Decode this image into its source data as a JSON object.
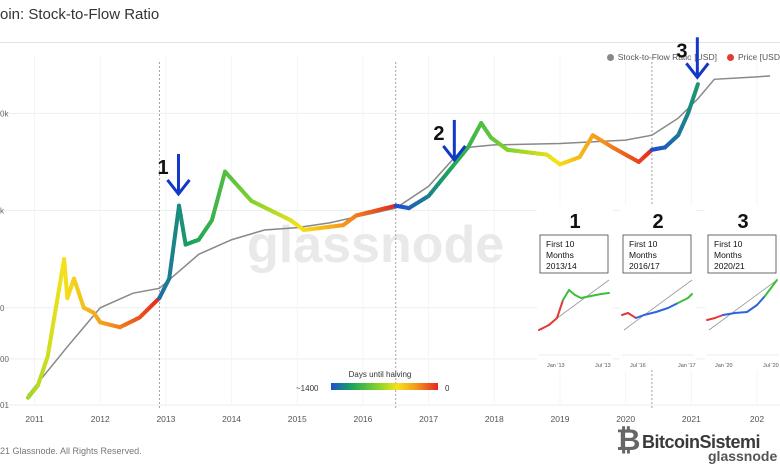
{
  "page_title": "oin: Stock-to-Flow Ratio",
  "legend": [
    {
      "label": "Stock-to-Flow Ratio [USD]",
      "color": "#888888"
    },
    {
      "label": "Price [USD",
      "color": "#e53935"
    }
  ],
  "footer": "21 Glassnode. All Rights Reserved.",
  "watermark": {
    "brand": "BitcoinSistemi",
    "sub": "glassnode",
    "chart_brand": "glassnode"
  },
  "colorbar": {
    "title": "Days until halving",
    "low_label": "~1400",
    "high_label": "0"
  },
  "annotations": [
    {
      "label": "1",
      "x": 2013.1
    },
    {
      "label": "2",
      "x": 2017.3
    },
    {
      "label": "3",
      "x": 2021.0
    }
  ],
  "insets": [
    {
      "number": "1",
      "box": [
        "First 10",
        "Months",
        "2013/14"
      ],
      "xticks": [
        "Jan '13",
        "Jul '13"
      ]
    },
    {
      "number": "2",
      "box": [
        "First 10",
        "Months",
        "2016/17"
      ],
      "xticks": [
        "Jul '16",
        "Jan '17"
      ]
    },
    {
      "number": "3",
      "box": [
        "First 10",
        "Months",
        "2020/21"
      ],
      "xticks": [
        "Jan '20",
        "Jul '20"
      ]
    }
  ],
  "chart_data": {
    "type": "line",
    "xlabel": "",
    "ylabel": "",
    "x_ticks": [
      "2011",
      "2012",
      "2013",
      "2014",
      "2015",
      "2016",
      "2017",
      "2018",
      "2019",
      "2020",
      "2021",
      "202"
    ],
    "y_tick_labels": [
      "0k",
      "k",
      "0",
      "00",
      "01"
    ],
    "grid": true,
    "legend_position": "top-right",
    "halving_dates": [
      2012.9,
      2016.5,
      2020.4
    ],
    "series": [
      {
        "name": "Stock-to-Flow Ratio [USD]",
        "color": "#888888",
        "points": [
          [
            2010.9,
            0.2
          ],
          [
            2011.5,
            1.2
          ],
          [
            2012.0,
            2.0
          ],
          [
            2012.5,
            2.3
          ],
          [
            2012.9,
            2.4
          ],
          [
            2013.5,
            3.1
          ],
          [
            2014.0,
            3.4
          ],
          [
            2014.5,
            3.6
          ],
          [
            2015.0,
            3.65
          ],
          [
            2015.5,
            3.75
          ],
          [
            2016.0,
            3.9
          ],
          [
            2016.5,
            4.05
          ],
          [
            2017.0,
            4.5
          ],
          [
            2017.4,
            5.1
          ],
          [
            2017.6,
            5.3
          ],
          [
            2018.0,
            5.35
          ],
          [
            2019.0,
            5.38
          ],
          [
            2020.0,
            5.45
          ],
          [
            2020.4,
            5.55
          ],
          [
            2020.8,
            5.9
          ],
          [
            2021.1,
            6.3
          ],
          [
            2021.35,
            6.7
          ],
          [
            2022.0,
            6.75
          ],
          [
            2022.2,
            6.77
          ]
        ]
      },
      {
        "name": "Price [USD",
        "points": [
          [
            2010.9,
            0.15
          ],
          [
            2011.05,
            0.4
          ],
          [
            2011.2,
            1.0
          ],
          [
            2011.3,
            1.8
          ],
          [
            2011.45,
            3.0
          ],
          [
            2011.5,
            2.2
          ],
          [
            2011.6,
            2.6
          ],
          [
            2011.75,
            2.0
          ],
          [
            2011.9,
            1.9
          ],
          [
            2012.0,
            1.7
          ],
          [
            2012.3,
            1.6
          ],
          [
            2012.6,
            1.8
          ],
          [
            2012.9,
            2.2
          ],
          [
            2013.05,
            2.6
          ],
          [
            2013.2,
            4.1
          ],
          [
            2013.3,
            3.3
          ],
          [
            2013.5,
            3.4
          ],
          [
            2013.7,
            3.8
          ],
          [
            2013.9,
            4.8
          ],
          [
            2014.1,
            4.5
          ],
          [
            2014.3,
            4.2
          ],
          [
            2014.6,
            4.0
          ],
          [
            2014.9,
            3.8
          ],
          [
            2015.1,
            3.6
          ],
          [
            2015.4,
            3.65
          ],
          [
            2015.7,
            3.7
          ],
          [
            2015.9,
            3.9
          ],
          [
            2016.2,
            4.0
          ],
          [
            2016.5,
            4.1
          ],
          [
            2016.7,
            4.05
          ],
          [
            2017.0,
            4.3
          ],
          [
            2017.3,
            4.8
          ],
          [
            2017.6,
            5.3
          ],
          [
            2017.8,
            5.8
          ],
          [
            2017.95,
            5.5
          ],
          [
            2018.2,
            5.25
          ],
          [
            2018.5,
            5.2
          ],
          [
            2018.8,
            5.15
          ],
          [
            2019.0,
            4.95
          ],
          [
            2019.3,
            5.1
          ],
          [
            2019.5,
            5.55
          ],
          [
            2019.8,
            5.3
          ],
          [
            2020.0,
            5.15
          ],
          [
            2020.2,
            5.0
          ],
          [
            2020.4,
            5.25
          ],
          [
            2020.6,
            5.3
          ],
          [
            2020.8,
            5.55
          ],
          [
            2020.95,
            6.0
          ],
          [
            2021.1,
            6.6
          ]
        ]
      }
    ]
  }
}
